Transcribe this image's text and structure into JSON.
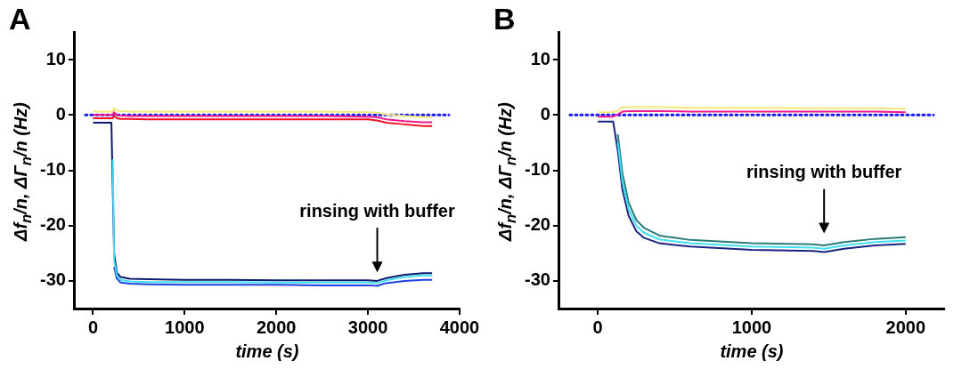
{
  "chart_data": [
    {
      "type": "line",
      "title": "A",
      "xlabel": "time (s)",
      "ylabel": "Δf$_{n}$/n, ΔΓ$_{n}$/n (Hz)",
      "x": [
        0,
        200,
        215,
        230,
        260,
        300,
        400,
        600,
        1000,
        1500,
        2000,
        2500,
        3000,
        3100,
        3200,
        3400,
        3600,
        3700
      ],
      "series": [
        {
          "color": "#0a1a6e",
          "values": [
            -1.4,
            -1.4,
            null,
            -25,
            -28.5,
            -29.3,
            -29.6,
            -29.7,
            -29.8,
            -29.8,
            -29.9,
            -29.9,
            -29.9,
            -30,
            -29.5,
            -28.9,
            -28.6,
            -28.6
          ]
        },
        {
          "color": "#1f3fe0",
          "values": [
            null,
            null,
            null,
            -27.5,
            -29.6,
            -30.3,
            -30.5,
            -30.6,
            -30.7,
            -30.7,
            -30.7,
            -30.8,
            -30.8,
            -30.9,
            -30.4,
            -30,
            -29.8,
            -29.8
          ]
        },
        {
          "color": "#40e0f0",
          "values": [
            null,
            null,
            -8,
            -26.3,
            -29,
            -29.8,
            -30.1,
            -30.2,
            -30.2,
            -30.2,
            -30.3,
            -30.3,
            -30.3,
            -30.4,
            -29.9,
            -29.3,
            -29,
            -29
          ]
        },
        {
          "color": "#f5e87a",
          "values": [
            0.6,
            0.6,
            0.6,
            1.2,
            0.8,
            0.7,
            0.6,
            0.6,
            0.6,
            0.6,
            0.6,
            0.6,
            0.5,
            0.4,
            0.1,
            -0.2,
            -0.4,
            -0.4
          ]
        },
        {
          "color": "#f0198c",
          "values": [
            0,
            0,
            0,
            0.5,
            0,
            -0.1,
            -0.2,
            -0.2,
            -0.2,
            -0.2,
            -0.2,
            -0.2,
            -0.3,
            -0.4,
            -0.8,
            -1.1,
            -1.3,
            -1.3
          ]
        },
        {
          "color": "#f01020",
          "values": [
            -0.6,
            -0.6,
            -0.6,
            -0.2,
            -0.6,
            -0.7,
            -0.7,
            -0.8,
            -0.8,
            -0.8,
            -0.8,
            -0.8,
            -0.8,
            -1,
            -1.4,
            -1.7,
            -2,
            -2
          ]
        }
      ],
      "xlim": [
        -200,
        4000
      ],
      "xticks": [
        0,
        1000,
        2000,
        3000,
        4000
      ],
      "ylim": [
        -35,
        15
      ],
      "yticks": [
        -30,
        -20,
        -10,
        0,
        10
      ],
      "ref_lines": [
        {
          "axis": "y",
          "value": 0,
          "label": null,
          "color": "#1a1aff",
          "line_style": "dotted"
        }
      ],
      "annotations": [
        "rinsing with buffer"
      ],
      "grid": false,
      "legend": false,
      "marker": "none"
    },
    {
      "type": "line",
      "title": "B",
      "xlabel": "time (s)",
      "ylabel": "Δf$_{n}$/n, ΔΓ$_{n}$/n (Hz)",
      "x": [
        0,
        100,
        130,
        160,
        200,
        250,
        300,
        400,
        600,
        1000,
        1400,
        1470,
        1600,
        1800,
        2000
      ],
      "series": [
        {
          "color": "#1a237e",
          "values": [
            -1.2,
            -1.2,
            -6.5,
            -13.5,
            -18.2,
            -21,
            -22.2,
            -23.2,
            -23.8,
            -24.4,
            -24.6,
            -24.8,
            -24.2,
            -23.6,
            -23.3
          ]
        },
        {
          "color": "#2a7a7a",
          "values": [
            null,
            null,
            -3.5,
            -10.5,
            -15.8,
            -19,
            -20.4,
            -21.8,
            -22.6,
            -23.2,
            -23.4,
            -23.6,
            -23,
            -22.4,
            -22.1
          ]
        },
        {
          "color": "#40e0f0",
          "values": [
            null,
            null,
            -5,
            -12,
            -17,
            -20,
            -21.3,
            -22.5,
            -23.2,
            -23.8,
            -24,
            -24.2,
            -23.6,
            -23,
            -22.7
          ]
        },
        {
          "color": "#f5e87a",
          "values": [
            0.5,
            0.5,
            0.8,
            1.4,
            1.4,
            1.4,
            1.4,
            1.4,
            1.3,
            1.3,
            1.2,
            1.2,
            1.2,
            1.2,
            1.1
          ]
        },
        {
          "color": "#f0198c",
          "values": [
            -0.3,
            -0.3,
            0.1,
            0.6,
            0.7,
            0.7,
            0.7,
            0.7,
            0.6,
            0.6,
            0.6,
            0.6,
            0.6,
            0.6,
            0.5
          ]
        }
      ],
      "xlim": [
        -250,
        2250
      ],
      "xticks": [
        0,
        1000,
        2000
      ],
      "ylim": [
        -35,
        15
      ],
      "yticks": [
        -30,
        -20,
        -10,
        0,
        10
      ],
      "ref_lines": [
        {
          "axis": "y",
          "value": 0,
          "label": null,
          "color": "#1a1aff",
          "line_style": "dotted"
        }
      ],
      "annotations": [
        "rinsing with buffer"
      ],
      "grid": false,
      "legend": false,
      "marker": "none"
    }
  ]
}
